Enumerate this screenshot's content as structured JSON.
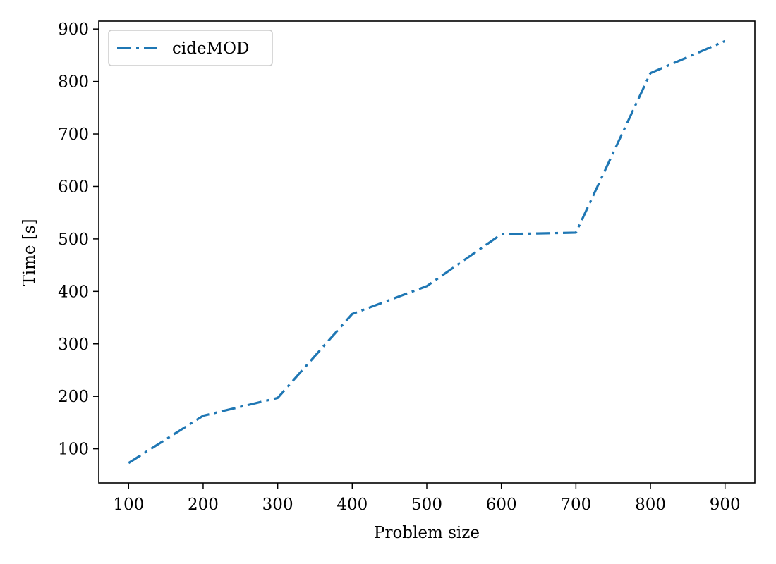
{
  "chart_data": {
    "type": "line",
    "title": "",
    "xlabel": "Problem size",
    "ylabel": "Time [s]",
    "xlim": [
      60,
      940
    ],
    "ylim": [
      35,
      915
    ],
    "xticks": [
      100,
      200,
      300,
      400,
      500,
      600,
      700,
      800,
      900
    ],
    "yticks": [
      100,
      200,
      300,
      400,
      500,
      600,
      700,
      800,
      900
    ],
    "grid": false,
    "legend_position": "top-left",
    "series": [
      {
        "name": "cideMOD",
        "color": "#1f77b4",
        "line_style": "dash-dot",
        "x": [
          100,
          200,
          300,
          400,
          500,
          600,
          700,
          800,
          900
        ],
        "y": [
          73,
          163,
          197,
          357,
          410,
          509,
          512,
          816,
          877
        ]
      }
    ]
  }
}
